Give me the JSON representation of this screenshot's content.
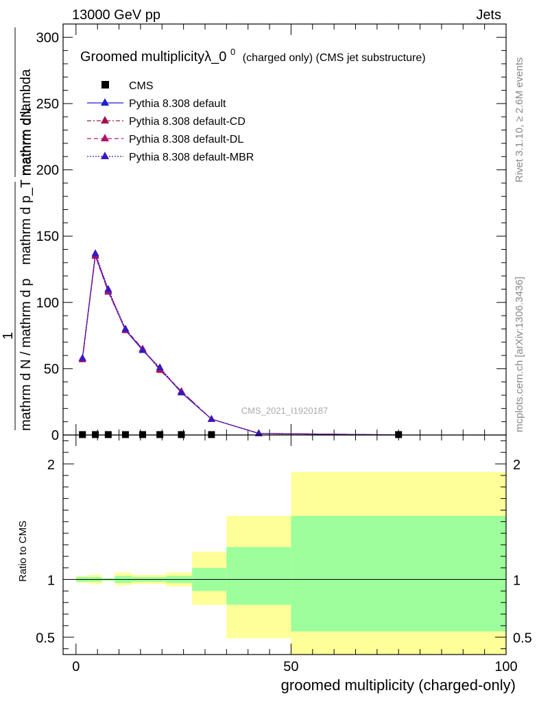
{
  "header": {
    "beam": "13000 GeV pp",
    "process": "Jets"
  },
  "side_labels": {
    "rivet": "Rivet 3.1.10, ≥ 2.6M events",
    "mcplots": "mcplots.cern.ch [arXiv:1306.3436]"
  },
  "watermark": "CMS_2021_I1920187",
  "colors": {
    "pythia_default": "#1f1fcc",
    "pythia_cd": "#a0104a",
    "pythia_dl": "#b0126a",
    "pythia_mbr": "#3818c0",
    "band_inner": "#9cff9c",
    "band_outer": "#ffff99",
    "data": "#000000"
  },
  "chart_data": [
    {
      "type": "line",
      "panel": "main",
      "title": "Groomed multiplicityλ_0⁰ (charged only) (CMS jet substructure)",
      "title_main": "Groomed multiplicityλ_0",
      "title_sup": "0",
      "title_suffix": "(charged only) (CMS jet substructure)",
      "ylabel_top": "mathrm dN",
      "ylabel_top_num": "1",
      "ylabel_bottom": "mathrm d N / mathrm d p_T mathrm d p_T mathrm d lambda",
      "ylabel_line2": "mathrm d p_T mathrm d lambda",
      "ylabel_line1": "mathrm d N / mathrm d p",
      "xlim": [
        -3,
        100
      ],
      "ylim": [
        0,
        310
      ],
      "yticks": [
        0,
        50,
        100,
        150,
        200,
        250,
        300
      ],
      "legend_position": "top-left",
      "series": [
        {
          "name": "CMS",
          "marker": "square",
          "x": [
            1.5,
            4.5,
            7.5,
            11.5,
            15.5,
            19.5,
            24.5,
            31.5,
            75
          ],
          "y": [
            0.3,
            0.3,
            0.3,
            0.3,
            0.3,
            0.3,
            0.3,
            0.3,
            0.3
          ]
        },
        {
          "name": "Pythia 8.308 default",
          "style": "solid",
          "x": [
            1.5,
            4.5,
            7.5,
            11.5,
            15.5,
            19.5,
            24.5,
            31.5,
            42.5,
            75
          ],
          "y": [
            58,
            136,
            109,
            79,
            64,
            50,
            32,
            12,
            1.2,
            0.05
          ]
        },
        {
          "name": "Pythia 8.308 default-CD",
          "style": "dashdot",
          "x": [
            1.5,
            4.5,
            7.5,
            11.5,
            15.5,
            19.5,
            24.5,
            31.5,
            42.5,
            75
          ],
          "y": [
            57,
            135,
            108,
            79,
            65,
            49,
            33,
            12,
            1.2,
            0.05
          ]
        },
        {
          "name": "Pythia 8.308 default-DL",
          "style": "dashed",
          "x": [
            1.5,
            4.5,
            7.5,
            11.5,
            15.5,
            19.5,
            24.5,
            31.5,
            42.5,
            75
          ],
          "y": [
            57,
            135,
            108,
            80,
            65,
            50,
            33,
            12,
            1.2,
            0.05
          ]
        },
        {
          "name": "Pythia 8.308 default-MBR",
          "style": "dotted",
          "x": [
            1.5,
            4.5,
            7.5,
            11.5,
            15.5,
            19.5,
            24.5,
            31.5,
            42.5,
            75
          ],
          "y": [
            58,
            137,
            110,
            80,
            64,
            51,
            32,
            12,
            1.2,
            0.05
          ]
        }
      ]
    },
    {
      "type": "area",
      "panel": "ratio",
      "ylabel": "Ratio to CMS",
      "xlabel": "groomed multiplicity (charged-only)",
      "xlim": [
        -3,
        100
      ],
      "ylim": [
        0.35,
        2.25
      ],
      "xticks": [
        0,
        50,
        100
      ],
      "yticks": [
        0.5,
        1,
        2
      ],
      "bins": [
        {
          "lo": 0,
          "hi": 3,
          "inner": [
            0.98,
            1.02
          ],
          "outer": [
            0.97,
            1.03
          ]
        },
        {
          "lo": 3,
          "hi": 6,
          "inner": [
            0.98,
            1.02
          ],
          "outer": [
            0.96,
            1.04
          ]
        },
        {
          "lo": 6,
          "hi": 9,
          "inner": [
            0.99,
            1.01
          ],
          "outer": [
            0.99,
            1.01
          ]
        },
        {
          "lo": 9,
          "hi": 13,
          "inner": [
            0.97,
            1.03
          ],
          "outer": [
            0.95,
            1.06
          ]
        },
        {
          "lo": 13,
          "hi": 17,
          "inner": [
            0.98,
            1.02
          ],
          "outer": [
            0.96,
            1.04
          ]
        },
        {
          "lo": 17,
          "hi": 21,
          "inner": [
            0.98,
            1.02
          ],
          "outer": [
            0.96,
            1.04
          ]
        },
        {
          "lo": 21,
          "hi": 27,
          "inner": [
            0.97,
            1.03
          ],
          "outer": [
            0.94,
            1.06
          ]
        },
        {
          "lo": 27,
          "hi": 35,
          "inner": [
            0.9,
            1.1
          ],
          "outer": [
            0.78,
            1.24
          ]
        },
        {
          "lo": 35,
          "hi": 50,
          "inner": [
            0.78,
            1.28
          ],
          "outer": [
            0.49,
            1.55
          ]
        },
        {
          "lo": 50,
          "hi": 100,
          "inner": [
            0.55,
            1.55
          ],
          "outer": [
            0.35,
            1.93
          ]
        }
      ],
      "reference": 1
    }
  ]
}
